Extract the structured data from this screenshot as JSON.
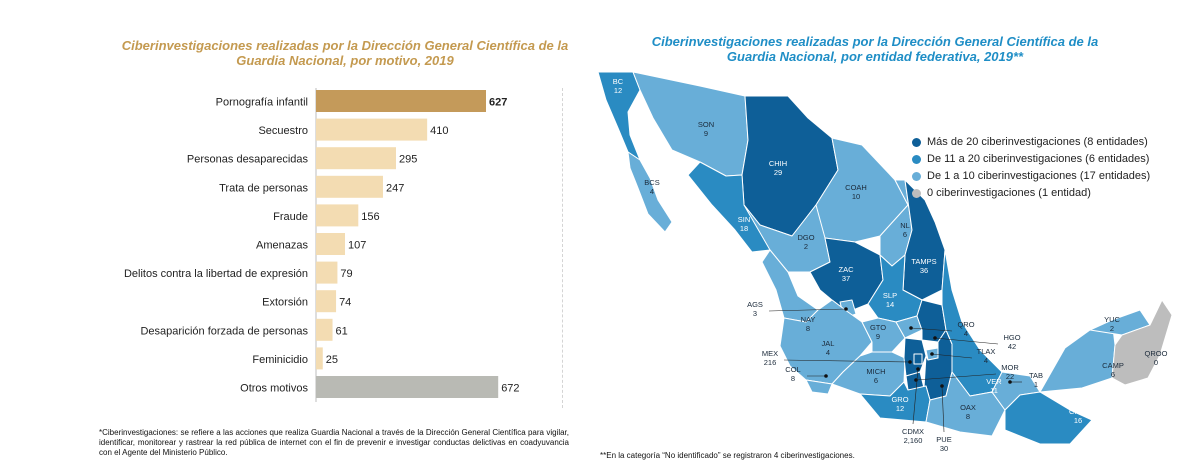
{
  "left_title": "Ciberinvestigaciones realizadas por la Dirección General Científica de la Guardia Nacional, por motivo, 2019",
  "right_title": "Ciberinvestigaciones realizadas por la Dirección General Científica de la Guardia Nacional, por entidad federativa, 2019**",
  "chart_data": [
    {
      "type": "bar",
      "orientation": "horizontal",
      "title": "Ciberinvestigaciones realizadas por la Dirección General Científica de la Guardia Nacional, por motivo, 2019",
      "categories": [
        "Pornografía infantil",
        "Secuestro",
        "Personas desaparecidas",
        "Trata de personas",
        "Fraude",
        "Amenazas",
        "Delitos contra la libertad de expresión",
        "Extorsión",
        "Desaparición forzada de personas",
        "Feminicidio",
        "Otros motivos"
      ],
      "values": [
        627,
        410,
        295,
        247,
        156,
        107,
        79,
        74,
        61,
        25,
        672
      ],
      "xlim": [
        0,
        720
      ],
      "colors": {
        "highlight": "#c49a5a",
        "default": "#f3dcb2",
        "other": "#b9bab4"
      }
    },
    {
      "type": "choropleth",
      "title": "Ciberinvestigaciones realizadas por la Dirección General Científica de la Guardia Nacional, por entidad federativa, 2019**",
      "legend": [
        {
          "label": "Más de 20 ciberinvestigaciones (8 entidades)",
          "color": "#0e5f98"
        },
        {
          "label": "De 11 a 20 ciberinvestigaciones (6 entidades)",
          "color": "#2a8bc2"
        },
        {
          "label": "De 1 a 10 ciberinvestigaciones (17 entidades)",
          "color": "#68aed8"
        },
        {
          "label": "0 ciberinvestigaciones (1 entidad)",
          "color": "#bdbdbd"
        }
      ],
      "states": [
        {
          "name": "BC",
          "value": "12"
        },
        {
          "name": "SON",
          "value": "9"
        },
        {
          "name": "CHIH",
          "value": "29"
        },
        {
          "name": "BCS",
          "value": "4"
        },
        {
          "name": "COAH",
          "value": "10"
        },
        {
          "name": "SIN",
          "value": "18"
        },
        {
          "name": "NL",
          "value": "6"
        },
        {
          "name": "DGO",
          "value": "2"
        },
        {
          "name": "TAMPS",
          "value": "36"
        },
        {
          "name": "ZAC",
          "value": "37"
        },
        {
          "name": "SLP",
          "value": "14"
        },
        {
          "name": "AGS",
          "value": "3"
        },
        {
          "name": "NAY",
          "value": "8"
        },
        {
          "name": "GTO",
          "value": "9"
        },
        {
          "name": "QRO",
          "value": "4"
        },
        {
          "name": "HGO",
          "value": "42"
        },
        {
          "name": "JAL",
          "value": "4"
        },
        {
          "name": "MEX",
          "value": "216"
        },
        {
          "name": "TLAX",
          "value": "4"
        },
        {
          "name": "COL",
          "value": "8"
        },
        {
          "name": "MICH",
          "value": "6"
        },
        {
          "name": "MOR",
          "value": "22"
        },
        {
          "name": "VER",
          "value": "11"
        },
        {
          "name": "GRO",
          "value": "12"
        },
        {
          "name": "CDMX",
          "value": "2,160"
        },
        {
          "name": "PUE",
          "value": "30"
        },
        {
          "name": "OAX",
          "value": "8"
        },
        {
          "name": "TAB",
          "value": "1"
        },
        {
          "name": "CHIS",
          "value": "16"
        },
        {
          "name": "CAMP",
          "value": "6"
        },
        {
          "name": "YUC",
          "value": "2"
        },
        {
          "name": "QROO",
          "value": "0"
        }
      ]
    }
  ],
  "footnote_left": "*Ciberinvestigaciones: se refiere a las acciones que realiza Guardia Nacional a través de la Dirección General Científica para vigilar, identificar, monitorear y rastrear la red pública de internet con el fin de prevenir e investigar conductas delictivas en coadyuvancia con el Agente del Ministerio Público.",
  "footnote_right": "**En la categoría “No identificado” se registraron 4 ciberinvestigaciones."
}
